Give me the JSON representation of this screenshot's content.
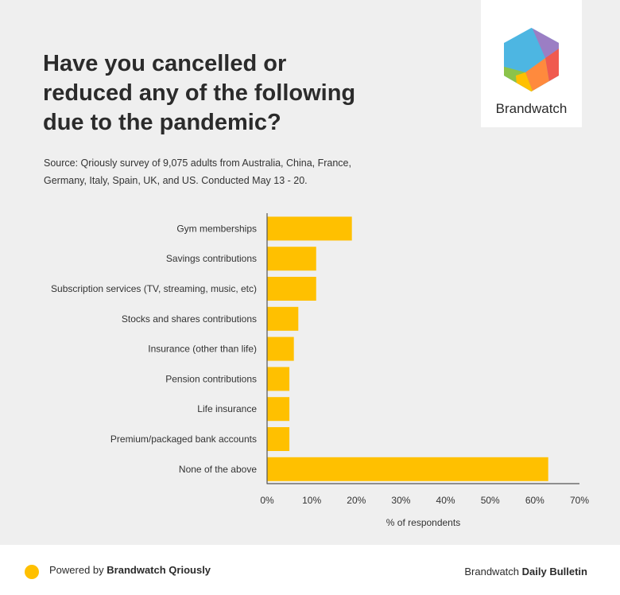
{
  "header": {
    "title": "Have you cancelled or\nreduced any of the following\ndue to the pandemic?",
    "source": "Source: Qriously survey of 9,075 adults from Australia, China, France,\nGermany, Italy, Spain, UK, and US. Conducted May 13 - 20."
  },
  "logo": {
    "name": "Brandwatch"
  },
  "footer": {
    "powered_prefix": "Powered by",
    "powered_brand": "Brandwatch Qriously",
    "right_prefix": "Brandwatch",
    "right_brand": "Daily Bulletin"
  },
  "colors": {
    "bar": "#ffc000",
    "axis": "#555555",
    "panel": "#efefef"
  },
  "chart_data": {
    "type": "bar",
    "orientation": "horizontal",
    "title": "Have you cancelled or reduced any of the following due to the pandemic?",
    "xlabel": "% of respondents",
    "ylabel": "",
    "xlim": [
      0,
      70
    ],
    "xticks": [
      "0%",
      "10%",
      "20%",
      "30%",
      "40%",
      "50%",
      "60%",
      "70%"
    ],
    "xtick_values": [
      0,
      10,
      20,
      30,
      40,
      50,
      60,
      70
    ],
    "grid": false,
    "categories": [
      "Gym memberships",
      "Savings contributions",
      "Subscription services (TV, streaming, music, etc)",
      "Stocks and shares contributions",
      "Insurance (other than life)",
      "Pension contributions",
      "Life insurance",
      "Premium/packaged bank accounts",
      "None of the above"
    ],
    "values": [
      19,
      11,
      11,
      7,
      6,
      5,
      5,
      5,
      63
    ],
    "unit": "%"
  }
}
